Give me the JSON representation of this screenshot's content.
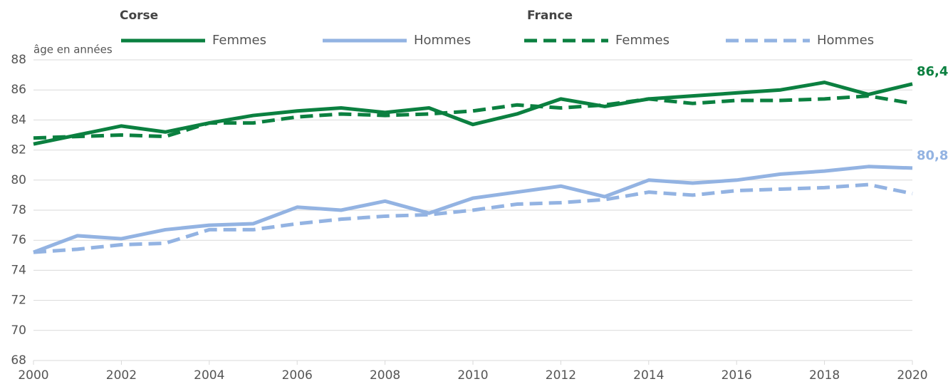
{
  "chart_data": {
    "type": "line",
    "y_axis_label": "âge en années",
    "legend": [
      {
        "title": "Corse"
      },
      {
        "title": "France"
      }
    ],
    "x": [
      2000,
      2001,
      2002,
      2003,
      2004,
      2005,
      2006,
      2007,
      2008,
      2009,
      2010,
      2011,
      2012,
      2013,
      2014,
      2015,
      2016,
      2017,
      2018,
      2019,
      2020
    ],
    "xlim": [
      2000,
      2020
    ],
    "xticks": [
      2000,
      2002,
      2004,
      2006,
      2008,
      2010,
      2012,
      2014,
      2016,
      2018,
      2020
    ],
    "ylim": [
      68,
      88
    ],
    "yticks": [
      68,
      70,
      72,
      74,
      76,
      78,
      80,
      82,
      84,
      86,
      88
    ],
    "grid": true,
    "series": [
      {
        "name": "Femmes",
        "color": "#0b8040",
        "dashed": false,
        "values": [
          82.4,
          83.0,
          83.6,
          83.2,
          83.8,
          84.3,
          84.6,
          84.8,
          84.5,
          84.8,
          83.7,
          84.4,
          85.4,
          84.9,
          85.4,
          85.6,
          85.8,
          86.0,
          86.5,
          85.7,
          86.4
        ],
        "value_labels": [
          null,
          null,
          null,
          null,
          null,
          null,
          null,
          null,
          null,
          null,
          null,
          null,
          null,
          null,
          null,
          null,
          null,
          null,
          null,
          null,
          "86,4"
        ]
      },
      {
        "name": "Hommes",
        "color": "#93b3e2",
        "dashed": false,
        "values": [
          75.2,
          76.3,
          76.1,
          76.7,
          77.0,
          77.1,
          78.2,
          78.0,
          78.6,
          77.8,
          78.8,
          79.2,
          79.6,
          78.9,
          80.0,
          79.8,
          80.0,
          80.4,
          80.6,
          80.9,
          80.8
        ],
        "value_labels": [
          null,
          null,
          null,
          null,
          null,
          null,
          null,
          null,
          null,
          null,
          null,
          null,
          null,
          null,
          null,
          null,
          null,
          null,
          null,
          null,
          "80,8"
        ]
      },
      {
        "name": "Femmes",
        "color": "#0b8040",
        "dashed": true,
        "values": [
          82.8,
          82.9,
          83.0,
          82.9,
          83.8,
          83.8,
          84.2,
          84.4,
          84.3,
          84.4,
          84.6,
          85.0,
          84.8,
          85.0,
          85.4,
          85.1,
          85.3,
          85.3,
          85.4,
          85.6,
          85.1
        ]
      },
      {
        "name": "Hommes",
        "color": "#93b3e2",
        "dashed": true,
        "values": [
          75.2,
          75.4,
          75.7,
          75.8,
          76.7,
          76.7,
          77.1,
          77.4,
          77.6,
          77.7,
          78.0,
          78.4,
          78.5,
          78.7,
          79.2,
          79.0,
          79.3,
          79.4,
          79.5,
          79.7,
          79.1
        ]
      }
    ]
  }
}
